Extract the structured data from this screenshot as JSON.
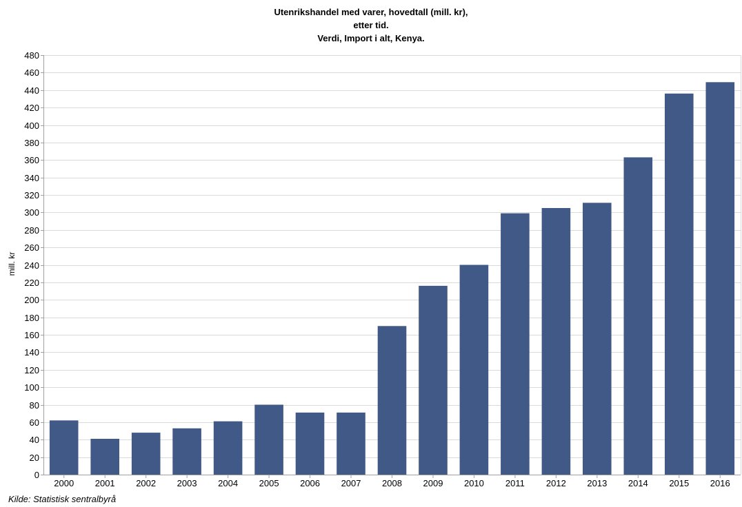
{
  "chart_data": {
    "type": "bar",
    "title_lines": [
      "Utenrikshandel med varer, hovedtall (mill. kr),",
      "etter tid.",
      "Verdi, Import i alt, Kenya."
    ],
    "xlabel": "",
    "ylabel": "mill. kr",
    "source": "Kilde: Statistisk sentralbyrå",
    "categories": [
      "2000",
      "2001",
      "2002",
      "2003",
      "2004",
      "2005",
      "2006",
      "2007",
      "2008",
      "2009",
      "2010",
      "2011",
      "2012",
      "2013",
      "2014",
      "2015",
      "2016"
    ],
    "values": [
      62,
      41,
      48,
      53,
      61,
      80,
      71,
      71,
      170,
      216,
      240,
      299,
      305,
      311,
      363,
      436,
      449
    ],
    "ylim": [
      0,
      480
    ],
    "ytick_step": 20,
    "grid": true,
    "legend": "none",
    "bar_color": "#415986",
    "grid_color": "#d9d9d9",
    "axis_color": "#a0a0a0"
  }
}
